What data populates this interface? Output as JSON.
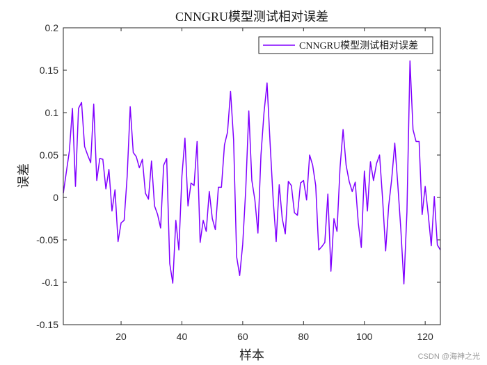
{
  "chart_data": {
    "type": "line",
    "title": "CNNGRU模型测试相对误差",
    "xlabel": "样本",
    "ylabel": "误差",
    "xlim": [
      1,
      125
    ],
    "ylim": [
      -0.15,
      0.2
    ],
    "xticks": [
      20,
      40,
      60,
      80,
      100,
      120
    ],
    "yticks": [
      -0.15,
      -0.1,
      -0.05,
      0,
      0.05,
      0.1,
      0.15,
      0.2
    ],
    "xtick_labels": [
      "20",
      "40",
      "60",
      "80",
      "100",
      "120"
    ],
    "ytick_labels": [
      "-0.15",
      "-0.1",
      "-0.05",
      "0",
      "0.05",
      "0.1",
      "0.15",
      "0.2"
    ],
    "legend_position": "top-right",
    "grid": false,
    "series": [
      {
        "name": "CNNGRU模型测试相对误差",
        "color": "#8000ff",
        "x": [
          1,
          2,
          3,
          4,
          5,
          6,
          7,
          8,
          9,
          10,
          11,
          12,
          13,
          14,
          15,
          16,
          17,
          18,
          19,
          20,
          21,
          22,
          23,
          24,
          25,
          26,
          27,
          28,
          29,
          30,
          31,
          32,
          33,
          34,
          35,
          36,
          37,
          38,
          39,
          40,
          41,
          42,
          43,
          44,
          45,
          46,
          47,
          48,
          49,
          50,
          51,
          52,
          53,
          54,
          55,
          56,
          57,
          58,
          59,
          60,
          61,
          62,
          63,
          64,
          65,
          66,
          67,
          68,
          69,
          70,
          71,
          72,
          73,
          74,
          75,
          76,
          77,
          78,
          79,
          80,
          81,
          82,
          83,
          84,
          85,
          86,
          87,
          88,
          89,
          90,
          91,
          92,
          93,
          94,
          95,
          96,
          97,
          98,
          99,
          100,
          101,
          102,
          103,
          104,
          105,
          106,
          107,
          108,
          109,
          110,
          111,
          112,
          113,
          114,
          115,
          116,
          117,
          118,
          119,
          120,
          121,
          122,
          123,
          124,
          125
        ],
        "values": [
          0.005,
          0.03,
          0.055,
          0.105,
          0.013,
          0.105,
          0.112,
          0.06,
          0.05,
          0.041,
          0.11,
          0.02,
          0.046,
          0.045,
          0.01,
          0.033,
          -0.016,
          0.009,
          -0.052,
          -0.03,
          -0.027,
          0.025,
          0.107,
          0.053,
          0.048,
          0.035,
          0.045,
          0.005,
          -0.002,
          0.043,
          -0.01,
          -0.02,
          -0.036,
          0.038,
          0.046,
          -0.078,
          -0.101,
          -0.027,
          -0.062,
          0.025,
          0.07,
          -0.01,
          0.017,
          0.014,
          0.066,
          -0.053,
          -0.027,
          -0.04,
          0.007,
          -0.025,
          -0.038,
          0.012,
          0.012,
          0.062,
          0.077,
          0.125,
          0.068,
          -0.07,
          -0.092,
          -0.055,
          0.01,
          0.102,
          0.02,
          -0.003,
          -0.042,
          0.05,
          0.1,
          0.135,
          0.064,
          -0.002,
          -0.052,
          0.015,
          -0.025,
          -0.043,
          0.019,
          0.014,
          -0.018,
          -0.021,
          0.017,
          0.02,
          -0.003,
          0.05,
          0.038,
          0.014,
          -0.062,
          -0.058,
          -0.053,
          0.004,
          -0.087,
          -0.025,
          -0.04,
          0.035,
          0.08,
          0.038,
          0.019,
          0.007,
          0.018,
          -0.03,
          -0.059,
          0.031,
          -0.016,
          0.042,
          0.02,
          0.04,
          0.05,
          -0.002,
          -0.063,
          -0.01,
          0.022,
          0.064,
          0.015,
          -0.038,
          -0.102,
          -0.017,
          0.161,
          0.08,
          0.066,
          0.066,
          -0.02,
          0.013,
          -0.02,
          -0.057,
          0.001,
          -0.056,
          -0.062
        ]
      }
    ]
  },
  "watermark": "CSDN @海神之光"
}
